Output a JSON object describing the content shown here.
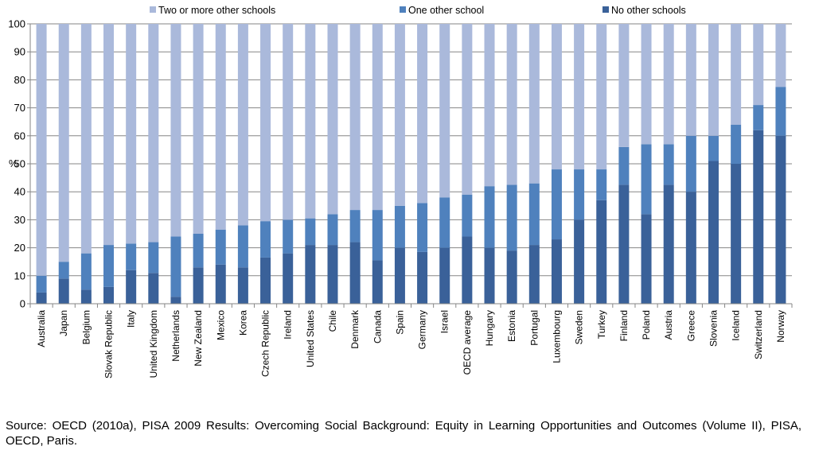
{
  "colors": {
    "two_or_more": "#aab9db",
    "one_other": "#4f81bd",
    "no_other": "#3a6199",
    "gridline": "#868686",
    "axis": "#868686"
  },
  "chart_data": {
    "type": "bar",
    "stacked": true,
    "title": "",
    "xlabel": "",
    "ylabel": "%",
    "ylim": [
      0,
      100
    ],
    "yticks": [
      0,
      10,
      20,
      30,
      40,
      50,
      60,
      70,
      80,
      90,
      100
    ],
    "grid": true,
    "legend_position": "top",
    "categories": [
      "Australia",
      "Japan",
      "Belgium",
      "Slovak Republic",
      "Italy",
      "United Kingdom",
      "Netherlands",
      "New Zealand",
      "Mexico",
      "Korea",
      "Czech Republic",
      "Ireland",
      "United States",
      "Chile",
      "Denmark",
      "Canada",
      "Spain",
      "Germany",
      "Israel",
      "OECD average",
      "Hungary",
      "Estonia",
      "Portugal",
      "Luxembourg",
      "Sweden",
      "Turkey",
      "Finland",
      "Poland",
      "Austria",
      "Greece",
      "Slovenia",
      "Iceland",
      "Switzerland",
      "Norway"
    ],
    "series": [
      {
        "name": "No other schools",
        "color_key": "no_other",
        "values": [
          4,
          9,
          5,
          6,
          12,
          11,
          2.5,
          13,
          14,
          13,
          16.5,
          18,
          21,
          21,
          22,
          15.5,
          20,
          18.5,
          20,
          24,
          20,
          19,
          21,
          23,
          30,
          37,
          42.5,
          32,
          42.5,
          40,
          51,
          50,
          62,
          60
        ]
      },
      {
        "name": "One other school",
        "color_key": "one_other",
        "values": [
          6,
          6,
          13,
          15,
          9.5,
          11,
          21.5,
          12,
          12.5,
          15,
          13,
          12,
          9.5,
          11,
          11.5,
          18,
          15,
          17.5,
          18,
          15,
          22,
          23.5,
          22,
          25,
          18,
          11,
          13.5,
          25,
          14.5,
          20,
          9,
          14,
          9,
          17.5
        ]
      },
      {
        "name": "Two or more other schools",
        "color_key": "two_or_more",
        "values": [
          90,
          85,
          82,
          79,
          78.5,
          78,
          76,
          75,
          73.5,
          72,
          70.5,
          70,
          69.5,
          68,
          66.5,
          66.5,
          65,
          64,
          62,
          61,
          58,
          57.5,
          57,
          52,
          52,
          52,
          44,
          43,
          43,
          40,
          40,
          36,
          29,
          22.5
        ]
      }
    ]
  },
  "legend": {
    "items": [
      {
        "label": "Two or more other schools",
        "color_key": "two_or_more"
      },
      {
        "label": "One other school",
        "color_key": "one_other"
      },
      {
        "label": "No other schools",
        "color_key": "no_other"
      }
    ]
  },
  "source_note": "Source: OECD (2010a), PISA 2009 Results: Overcoming Social Background: Equity in Learning Opportunities and Outcomes (Volume II), PISA, OECD, Paris."
}
